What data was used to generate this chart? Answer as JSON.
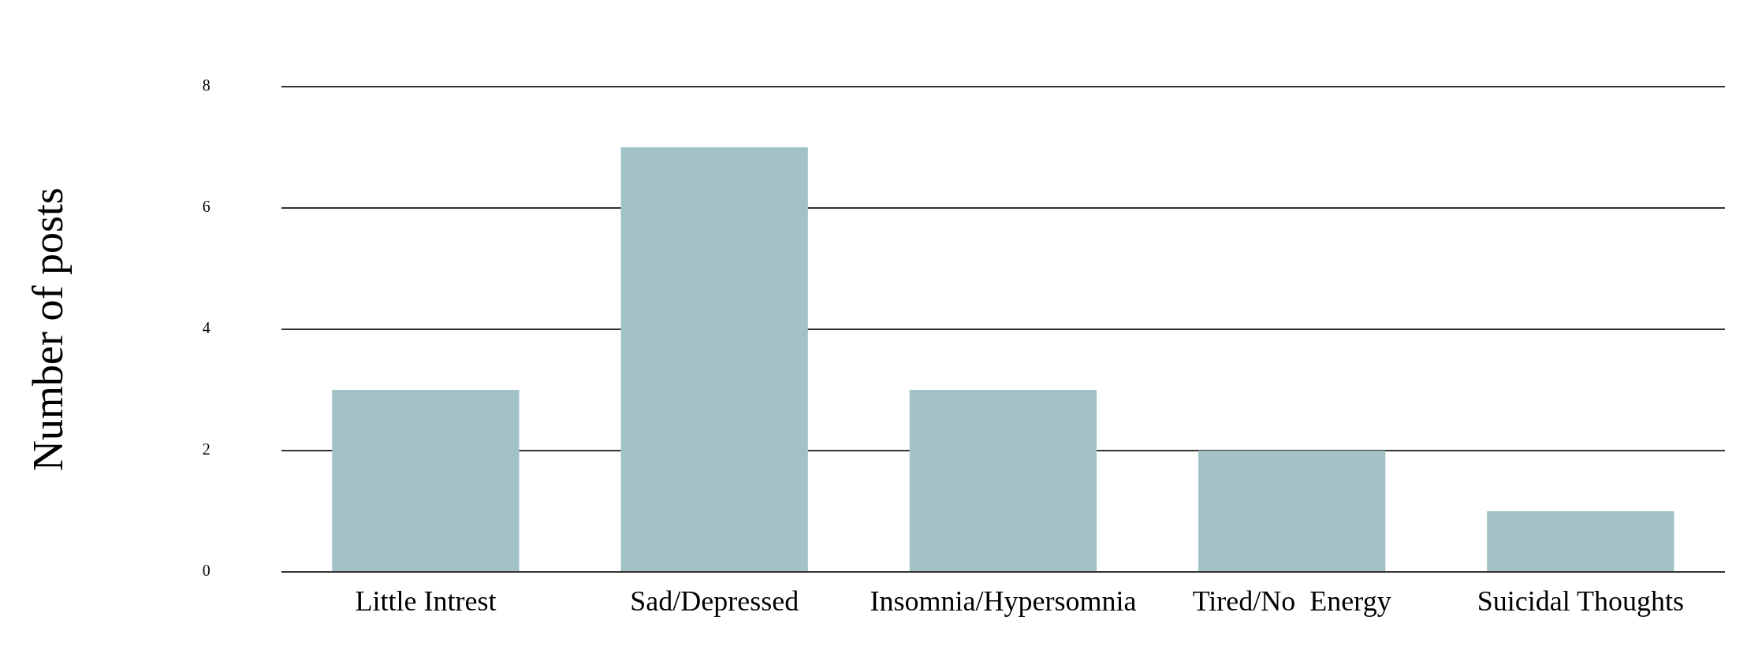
{
  "chart_data": {
    "type": "bar",
    "ylabel": "Number of posts",
    "categories": [
      "Little Intrest",
      "Sad/Depressed",
      "Insomnia/Hypersomnia",
      "Tired/No  Energy",
      "Suicidal Thoughts"
    ],
    "values": [
      3,
      7,
      3,
      2,
      1
    ],
    "color": "#a3c2c8",
    "ylim": [
      0,
      8
    ],
    "yticks": [
      0,
      2,
      4,
      6,
      8
    ],
    "grid": "y",
    "legend": false
  }
}
